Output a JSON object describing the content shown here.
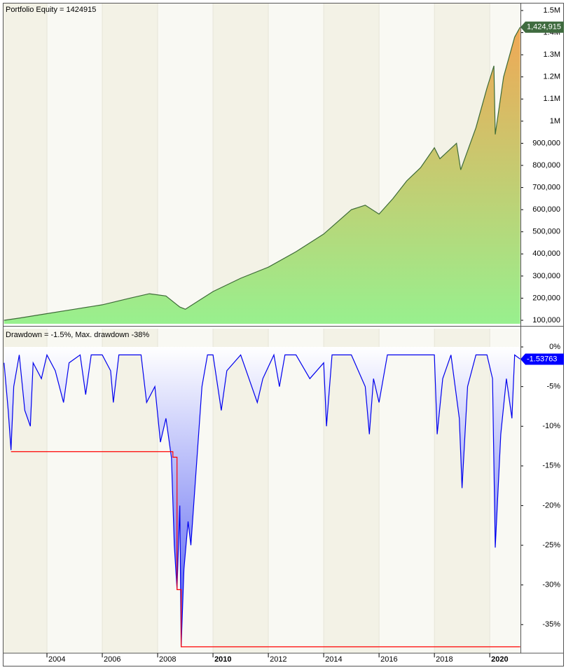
{
  "chart_data": [
    {
      "type": "area",
      "title": "Portfolio Equity = 1424915",
      "xlim": [
        2002.43,
        2021.11
      ],
      "xticks": [
        2004,
        2006,
        2008,
        2010,
        2012,
        2014,
        2016,
        2018,
        2020
      ],
      "ylim": [
        84200,
        1531700
      ],
      "yticks": [
        {
          "value": 100000,
          "label": "100,000"
        },
        {
          "value": 200000,
          "label": "200,000"
        },
        {
          "value": 300000,
          "label": "300,000"
        },
        {
          "value": 400000,
          "label": "400,000"
        },
        {
          "value": 500000,
          "label": "500,000"
        },
        {
          "value": 600000,
          "label": "600,000"
        },
        {
          "value": 700000,
          "label": "700,000"
        },
        {
          "value": 800000,
          "label": "800,000"
        },
        {
          "value": 900000,
          "label": "900,000"
        },
        {
          "value": 1000000,
          "label": "1M"
        },
        {
          "value": 1100000,
          "label": "1.1M"
        },
        {
          "value": 1200000,
          "label": "1.2M"
        },
        {
          "value": 1300000,
          "label": "1.3M"
        },
        {
          "value": 1400000,
          "label": "1.4M"
        },
        {
          "value": 1500000,
          "label": "1.5M"
        }
      ],
      "series": [
        {
          "color": "#3d6b37",
          "fill_top": "#f0a855",
          "fill_bottom": "#98f08e",
          "x": [
            2002.45,
            2003,
            2004,
            2005,
            2006,
            2007,
            2007.7,
            2008.3,
            2008.8,
            2009,
            2009.5,
            2010,
            2011,
            2012,
            2013,
            2014,
            2015,
            2015.5,
            2016,
            2016.5,
            2017,
            2017.5,
            2018,
            2018.2,
            2018.8,
            2018.95,
            2019.5,
            2019.9,
            2020.15,
            2020.2,
            2020.5,
            2020.9,
            2021.1
          ],
          "values": [
            100000,
            110000,
            130000,
            150000,
            170000,
            200000,
            220000,
            210000,
            160000,
            150000,
            190000,
            230000,
            290000,
            340000,
            410000,
            490000,
            600000,
            620000,
            580000,
            650000,
            730000,
            790000,
            880000,
            830000,
            900000,
            780000,
            970000,
            1150000,
            1250000,
            940000,
            1200000,
            1380000,
            1424915
          ],
          "last_value_label": "1,424,915",
          "last_label_color": "#3f6b3f"
        }
      ]
    },
    {
      "type": "area",
      "title": "Drawdown = -1.5%, Max. drawdown -38%",
      "xlim": [
        2002.43,
        2021.11
      ],
      "xticks": [
        2004,
        2006,
        2008,
        2010,
        2012,
        2014,
        2016,
        2018,
        2020
      ],
      "major_xticks": [
        2010,
        2020
      ],
      "ylim": [
        -38.6,
        2.3
      ],
      "yticks": [
        {
          "value": 0,
          "label": "0%"
        },
        {
          "value": -5,
          "label": "-5%"
        },
        {
          "value": -10,
          "label": "-10%"
        },
        {
          "value": -15,
          "label": "-15%"
        },
        {
          "value": -20,
          "label": "-20%"
        },
        {
          "value": -25,
          "label": "-25%"
        },
        {
          "value": -30,
          "label": "-30%"
        },
        {
          "value": -35,
          "label": "-35%"
        }
      ],
      "series": [
        {
          "color": "#0000ee",
          "fill_top": "#ffffff",
          "fill_bottom": "#4a55f0",
          "x": [
            2002.45,
            2002.6,
            2002.7,
            2002.8,
            2003,
            2003.2,
            2003.4,
            2003.5,
            2003.8,
            2004,
            2004.3,
            2004.6,
            2004.8,
            2005.2,
            2005.4,
            2005.6,
            2006,
            2006.3,
            2006.4,
            2006.6,
            2007,
            2007.4,
            2007.6,
            2007.9,
            2008.1,
            2008.3,
            2008.5,
            2008.6,
            2008.7,
            2008.8,
            2008.85,
            2008.95,
            2009.1,
            2009.2,
            2009.4,
            2009.6,
            2009.8,
            2010,
            2010.3,
            2010.5,
            2011,
            2011.6,
            2011.8,
            2012.2,
            2012.4,
            2012.6,
            2013,
            2013.5,
            2014,
            2014.1,
            2014.3,
            2015,
            2015.5,
            2015.65,
            2015.8,
            2016,
            2016.3,
            2016.8,
            2017,
            2017.5,
            2018,
            2018.1,
            2018.3,
            2018.6,
            2018.9,
            2019,
            2019.2,
            2019.5,
            2019.9,
            2020.1,
            2020.2,
            2020.4,
            2020.6,
            2020.8,
            2020.9,
            2021.1
          ],
          "values": [
            -2,
            -8,
            -13,
            -5,
            -1,
            -8,
            -10,
            -2,
            -4,
            -1,
            -3,
            -7,
            -2,
            -1,
            -6,
            -1,
            -1,
            -3,
            -7,
            -1,
            -1,
            -1,
            -7,
            -5,
            -12,
            -9,
            -14,
            -25,
            -30.5,
            -20,
            -37.8,
            -28,
            -22,
            -25,
            -15,
            -5,
            -1,
            -1,
            -8,
            -3,
            -1,
            -7,
            -4,
            -1,
            -5,
            -1,
            -1,
            -4,
            -2,
            -10,
            -1,
            -1,
            -5,
            -11,
            -4,
            -7,
            -1,
            -1,
            -1,
            -1,
            -1,
            -11,
            -4,
            -1,
            -9,
            -17.8,
            -5,
            -1,
            -1,
            -4,
            -25.3,
            -11,
            -4,
            -9,
            -1,
            -1.53763
          ],
          "last_label_color": "#0000ff"
        },
        {
          "type": "line",
          "color": "#ff0000",
          "x": [
            2002.7,
            2008.55,
            2008.55,
            2008.7,
            2008.7,
            2008.85,
            2008.85,
            2021.1
          ],
          "values": [
            -13.2,
            -13.2,
            -13.9,
            -13.9,
            -30.6,
            -30.6,
            -37.8,
            -37.8
          ]
        }
      ]
    }
  ]
}
